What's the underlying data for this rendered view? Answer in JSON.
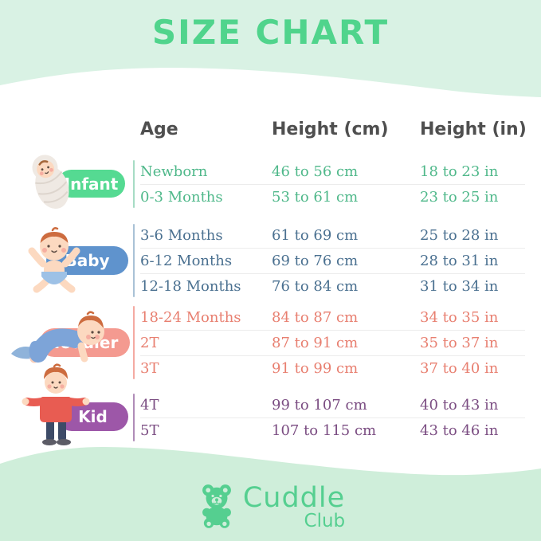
{
  "title": "SIZE CHART",
  "brand": {
    "name": "Cuddle",
    "sub": "Club"
  },
  "colors": {
    "background_mint_top": "#d9f2e4",
    "background_mint_bottom": "#cfeeda",
    "title_green": "#50d48c",
    "header_text": "#4f4f4f",
    "logo_green": "#55cf90",
    "row_separator": "#ececec"
  },
  "chart_data": {
    "type": "table",
    "title": "SIZE CHART",
    "columns": [
      "Age",
      "Height (cm)",
      "Height (in)"
    ],
    "groups": [
      {
        "name": "Infant",
        "icon": "swaddled-infant-illustration",
        "pill_color": "#55da92",
        "text_color": "#4fb88a",
        "line_color": "#a6dcc4",
        "rows": [
          [
            "Newborn",
            "46 to 56 cm",
            "18 to 23 in"
          ],
          [
            "0-3 Months",
            "53 to 61 cm",
            "23 to 25 in"
          ]
        ]
      },
      {
        "name": "Baby",
        "icon": "sitting-baby-illustration",
        "pill_color": "#5f93cd",
        "text_color": "#4a7090",
        "line_color": "#a9c2d6",
        "rows": [
          [
            "3-6 Months",
            "61 to 69 cm",
            "25 to 28 in"
          ],
          [
            "6-12 Months",
            "69 to 76 cm",
            "28 to 31 in"
          ],
          [
            "12-18 Months",
            "76 to 84 cm",
            "31 to 34 in"
          ]
        ]
      },
      {
        "name": "Toddler",
        "icon": "crawling-toddler-illustration",
        "pill_color": "#f49a90",
        "text_color": "#e87f70",
        "line_color": "#f4aaa2",
        "rows": [
          [
            "18-24 Months",
            "84 to 87 cm",
            "34 to 35 in"
          ],
          [
            "2T",
            "87 to 91 cm",
            "35 to 37 in"
          ],
          [
            "3T",
            "91 to 99 cm",
            "37 to 40 in"
          ]
        ]
      },
      {
        "name": "Kid",
        "icon": "standing-kid-illustration",
        "pill_color": "#9d57a8",
        "text_color": "#7b4d82",
        "line_color": "#b08cb8",
        "rows": [
          [
            "4T",
            "99 to 107 cm",
            "40 to 43 in"
          ],
          [
            "5T",
            "107 to 115 cm",
            "43 to 46 in"
          ]
        ]
      }
    ]
  }
}
